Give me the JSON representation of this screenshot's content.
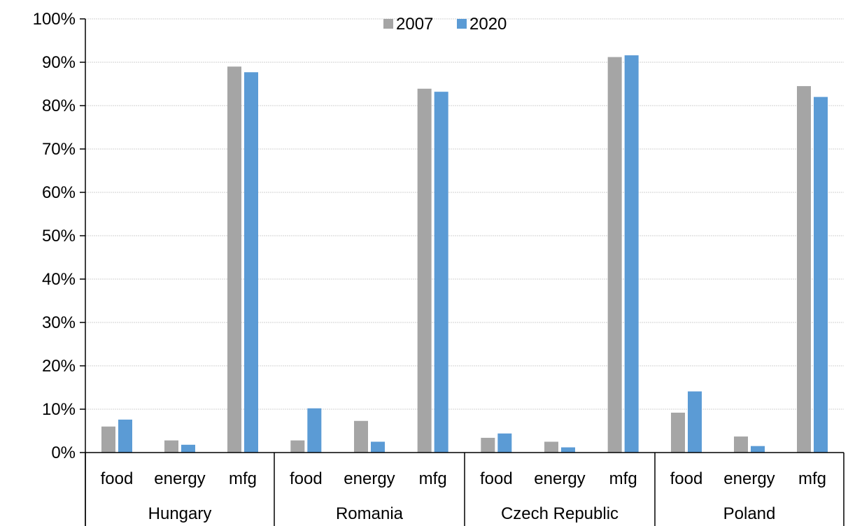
{
  "chart_data": {
    "type": "bar",
    "title": "",
    "xlabel": "",
    "ylabel": "",
    "ylim": [
      0,
      1
    ],
    "grid": true,
    "legend_position": "top-center",
    "y_ticks": [
      "0%",
      "10%",
      "20%",
      "30%",
      "40%",
      "50%",
      "60%",
      "70%",
      "80%",
      "90%",
      "100%"
    ],
    "groups": [
      {
        "label": "Hungary",
        "categories": [
          "food",
          "energy",
          "mfg"
        ]
      },
      {
        "label": "Romania",
        "categories": [
          "food",
          "energy",
          "mfg"
        ]
      },
      {
        "label": "Czech Republic",
        "categories": [
          "food",
          "energy",
          "mfg"
        ]
      },
      {
        "label": "Poland",
        "categories": [
          "food",
          "energy",
          "mfg"
        ]
      }
    ],
    "series": [
      {
        "name": "2007",
        "color": "#a5a5a5",
        "values": [
          0.06,
          0.028,
          0.89,
          0.028,
          0.073,
          0.839,
          0.034,
          0.025,
          0.912,
          0.092,
          0.037,
          0.845
        ]
      },
      {
        "name": "2020",
        "color": "#5b9bd5",
        "values": [
          0.076,
          0.018,
          0.877,
          0.102,
          0.025,
          0.832,
          0.044,
          0.012,
          0.916,
          0.141,
          0.015,
          0.82
        ]
      }
    ]
  }
}
